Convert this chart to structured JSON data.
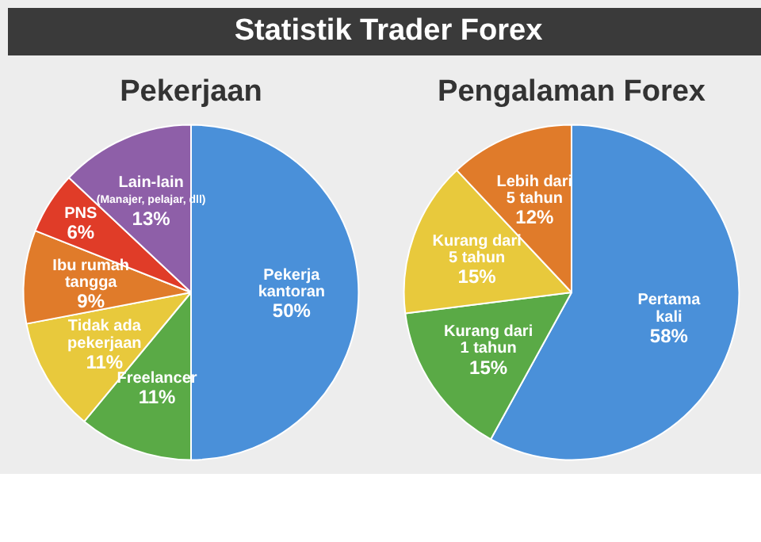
{
  "chart_data": [
    {
      "type": "pie",
      "title": "Statistik Trader Forex",
      "subtitle": "Pekerjaan",
      "categories": [
        "Pekerja\nkantoran",
        "Freelancer",
        "Tidak ada\npekerjaan",
        "Ibu rumah\ntangga",
        "PNS",
        "Lain-lain\n(Manajer, pelajar, dll)"
      ],
      "values": [
        50,
        11,
        11,
        9,
        6,
        13
      ],
      "value_labels": [
        "50%",
        "11%",
        "11%",
        "9%",
        "6%",
        "13%"
      ],
      "colors": [
        "#4a90d9",
        "#5aaa46",
        "#e8c93c",
        "#e07b2a",
        "#e03c28",
        "#8e5fa8"
      ]
    },
    {
      "type": "pie",
      "title": "Pengalaman Forex",
      "categories": [
        "Pertama\nkali",
        "Kurang dari\n1 tahun",
        "Kurang dari\n5 tahun",
        "Lebih dari\n5 tahun"
      ],
      "values": [
        58,
        15,
        15,
        12
      ],
      "value_labels": [
        "58%",
        "15%",
        "15%",
        "12%"
      ],
      "colors": [
        "#4a90d9",
        "#5aaa46",
        "#e8c93c",
        "#e07b2a"
      ]
    }
  ]
}
